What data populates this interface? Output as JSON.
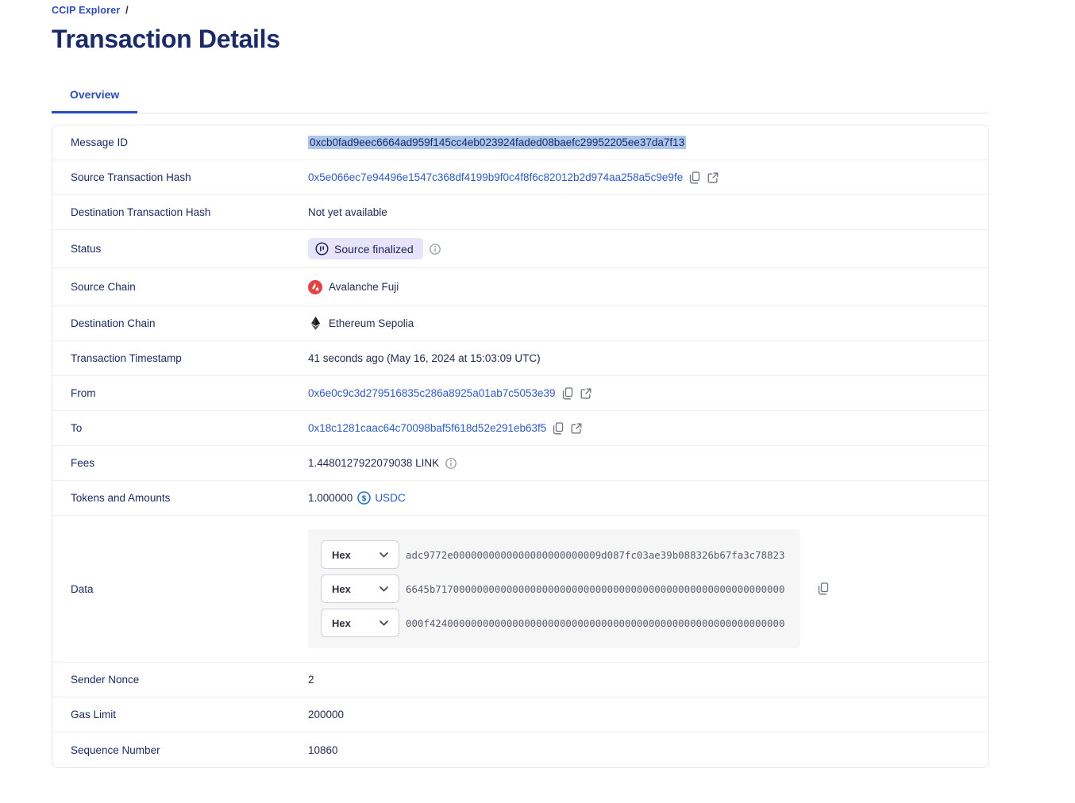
{
  "breadcrumb": {
    "link_label": "CCIP Explorer",
    "separator": "/"
  },
  "page": {
    "title": "Transaction Details"
  },
  "tabs": {
    "overview_label": "Overview"
  },
  "colors": {
    "accent_blue": "#2a5ada",
    "navy": "#1a2b6b",
    "badge_bg": "#e7e4f9",
    "selection_bg": "#aec6ea",
    "avalanche_red": "#e84142",
    "usdc_blue": "#2775ca"
  },
  "rows": {
    "message_id": {
      "label": "Message ID",
      "value": "0xcb0fad9eec6664ad959f145cc4eb023924faded08baefc29952205ee37da7f13"
    },
    "source_tx_hash": {
      "label": "Source Transaction Hash",
      "value": "0x5e066ec7e94496e1547c368df4199b9f0c4f8f6c82012b2d974aa258a5c9e9fe"
    },
    "dest_tx_hash": {
      "label": "Destination Transaction Hash",
      "value": "Not yet available"
    },
    "status": {
      "label": "Status",
      "badge_label": "Source finalized"
    },
    "source_chain": {
      "label": "Source Chain",
      "value": "Avalanche Fuji"
    },
    "dest_chain": {
      "label": "Destination Chain",
      "value": "Ethereum Sepolia"
    },
    "timestamp": {
      "label": "Transaction Timestamp",
      "value": "41 seconds ago (May 16, 2024 at 15:03:09 UTC)"
    },
    "from": {
      "label": "From",
      "value": "0x6e0c9c3d279516835c286a8925a01ab7c5053e39"
    },
    "to": {
      "label": "To",
      "value": "0x18c1281caac64c70098baf5f618d52e291eb63f5"
    },
    "fees": {
      "label": "Fees",
      "value": "1.4480127922079038 LINK"
    },
    "tokens": {
      "label": "Tokens and Amounts",
      "amount": "1.000000",
      "token_symbol": "USDC"
    },
    "data": {
      "label": "Data",
      "format_selected": "Hex",
      "lines": [
        "adc9772e0000000000000000000000009d087fc03ae39b088326b67fa3c78823",
        "6645b71700000000000000000000000000000000000000000000000000000000",
        "000f424000000000000000000000000000000000000000000000000000000000"
      ]
    },
    "sender_nonce": {
      "label": "Sender Nonce",
      "value": "2"
    },
    "gas_limit": {
      "label": "Gas Limit",
      "value": "200000"
    },
    "sequence_number": {
      "label": "Sequence Number",
      "value": "10860"
    }
  }
}
